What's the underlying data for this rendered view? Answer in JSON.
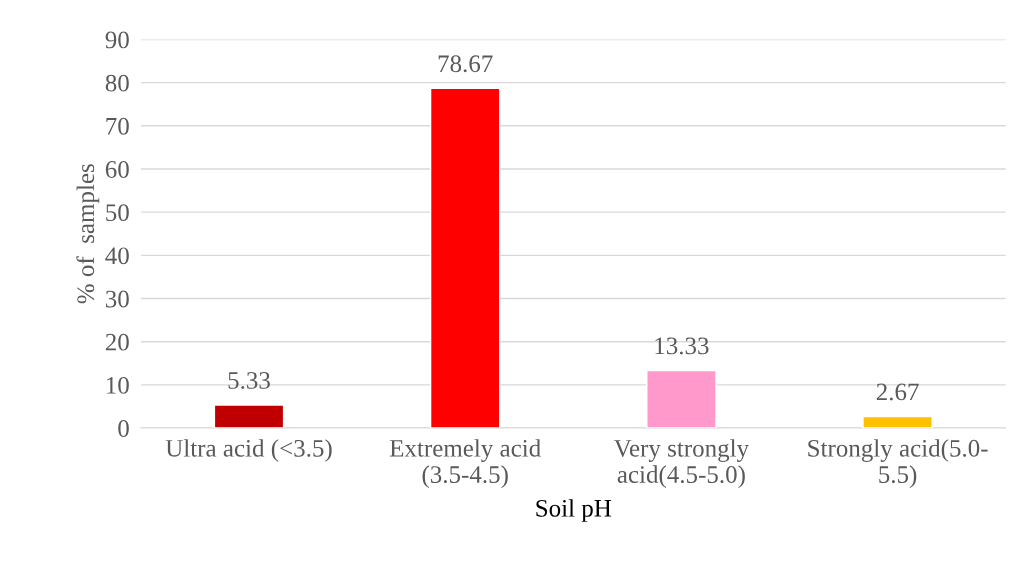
{
  "chart_data": {
    "type": "bar",
    "xlabel": "Soil pH",
    "ylabel": "% of  samples",
    "categories": [
      "Ultra acid (<3.5)",
      "Extremely acid\n(3.5-4.5)",
      "Very strongly\nacid(4.5-5.0)",
      "Strongly acid(5.0-\n5.5)"
    ],
    "values": [
      5.33,
      78.67,
      13.33,
      2.67
    ],
    "colors": [
      "#c00000",
      "#ff0000",
      "#ff99cc",
      "#ffc000"
    ],
    "ylim": [
      0,
      90
    ],
    "yticks": [
      0,
      10,
      20,
      30,
      40,
      50,
      60,
      70,
      80,
      90
    ],
    "grid": "y",
    "data_labels": true
  }
}
